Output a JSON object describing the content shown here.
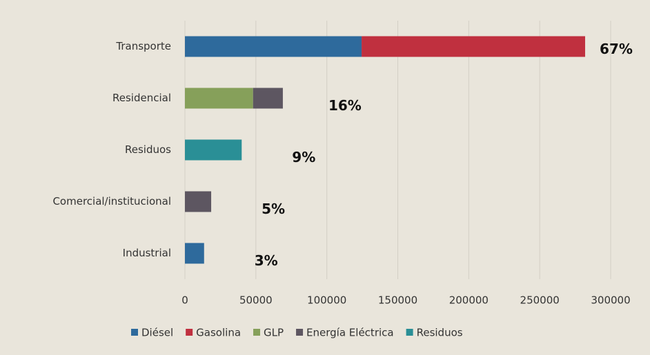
{
  "chart_data": {
    "type": "stacked-barh",
    "categories": [
      "Transporte",
      "Residencial",
      "Residuos",
      "Comercial/institucional",
      "Industrial"
    ],
    "series": [
      {
        "name": "Diésel",
        "color": "#2e6a9c",
        "values": [
          124500,
          null,
          null,
          null,
          13500
        ]
      },
      {
        "name": "Gasolina",
        "color": "#c0303f",
        "values": [
          157500,
          null,
          null,
          null,
          null
        ]
      },
      {
        "name": "GLP",
        "color": "#86a05a",
        "values": [
          null,
          48000,
          null,
          null,
          null
        ]
      },
      {
        "name": "Energía Eléctrica",
        "color": "#5d5661",
        "values": [
          null,
          21000,
          null,
          18500,
          null
        ]
      },
      {
        "name": "Residuos",
        "color": "#2a8f96",
        "values": [
          null,
          null,
          40000,
          null,
          null
        ]
      }
    ],
    "annotations": [
      "67%",
      "16%",
      "9%",
      "5%",
      "3%"
    ],
    "xlim": [
      0,
      300000
    ],
    "xticks": [
      0,
      50000,
      100000,
      150000,
      200000,
      250000,
      300000
    ],
    "grid": true
  }
}
